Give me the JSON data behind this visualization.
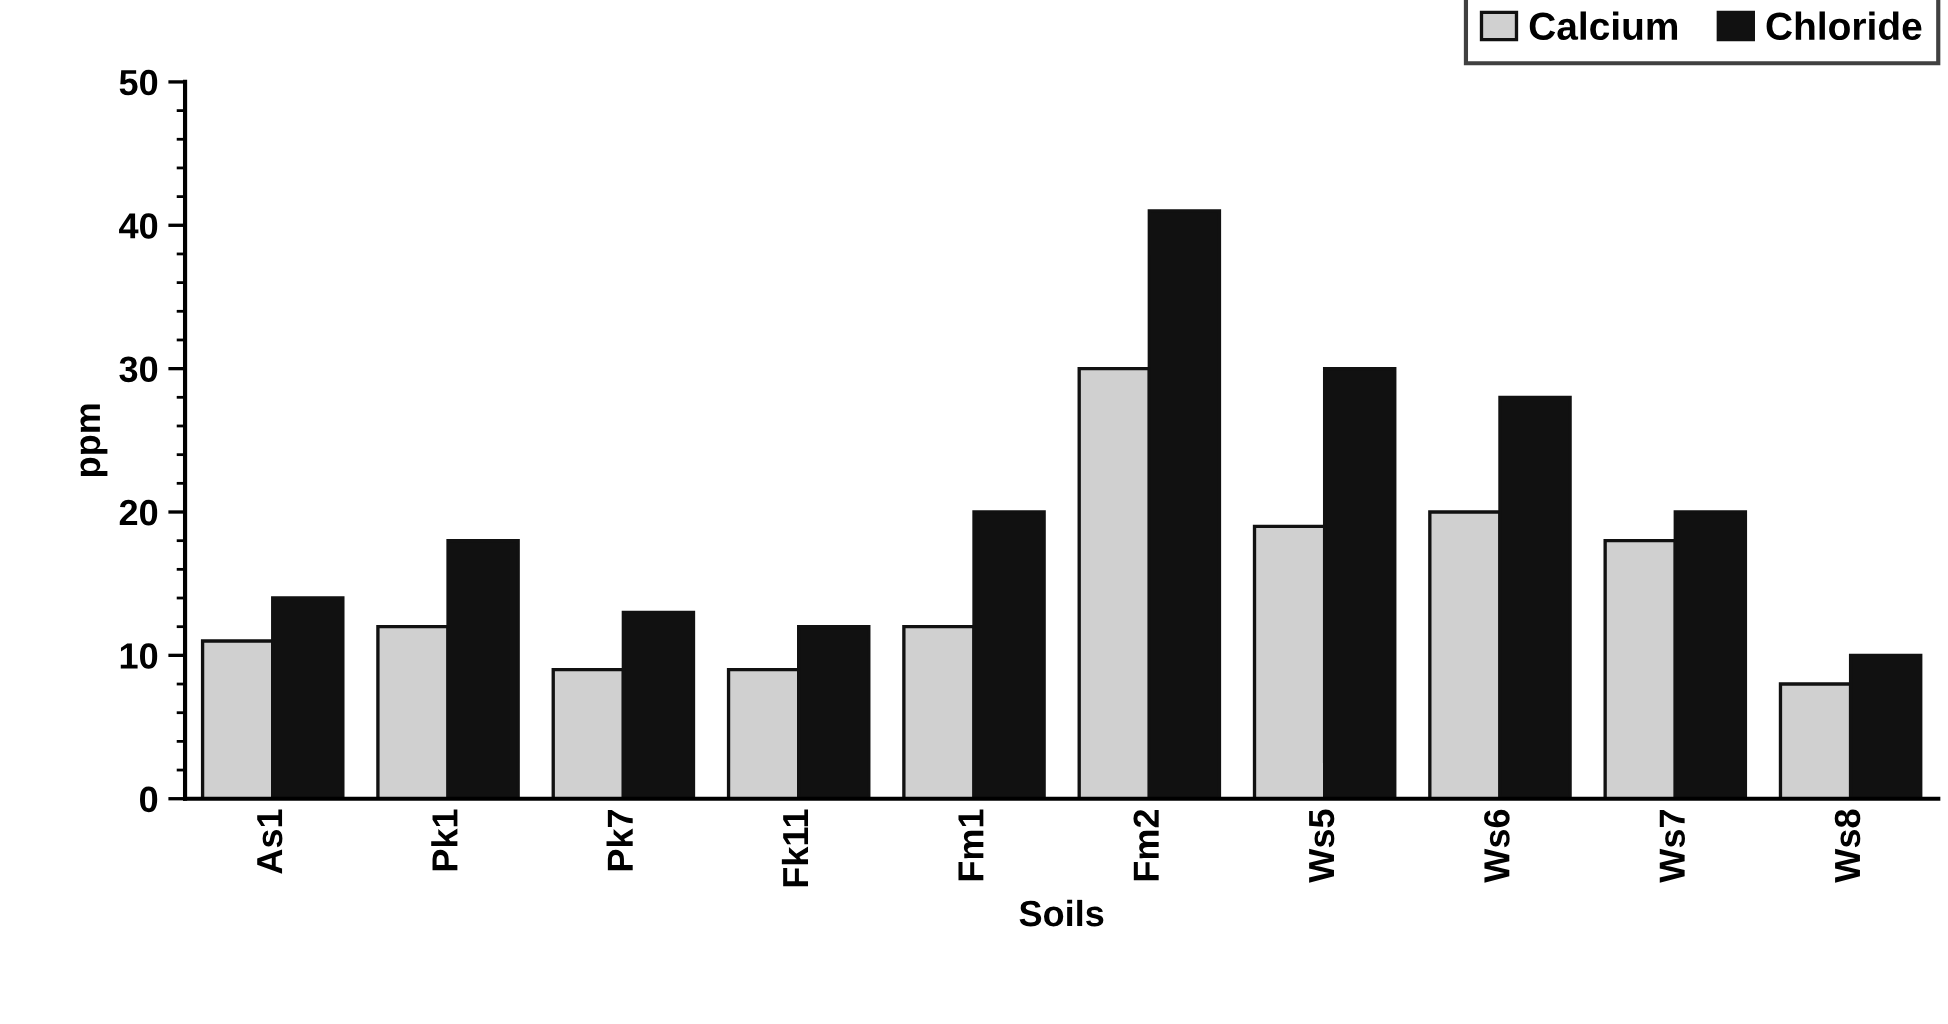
{
  "chart_data": {
    "type": "bar",
    "xlabel": "Soils",
    "ylabel": "ppm",
    "categories": [
      "As1",
      "Pk1",
      "Pk7",
      "Fk11",
      "Fm1",
      "Fm2",
      "Ws5",
      "Ws6",
      "Ws7",
      "Ws8"
    ],
    "series": [
      {
        "name": "Calcium",
        "color": "#d0d0d0",
        "values": [
          11,
          12,
          9,
          9,
          12,
          30,
          19,
          20,
          18,
          8
        ]
      },
      {
        "name": "Chloride",
        "color": "#111111",
        "values": [
          14,
          18,
          13,
          12,
          20,
          41,
          30,
          28,
          20,
          10
        ]
      }
    ],
    "ylim": [
      0,
      50
    ],
    "yticks": [
      0,
      10,
      20,
      30,
      40,
      50
    ],
    "grid": false,
    "legend": "top right"
  }
}
